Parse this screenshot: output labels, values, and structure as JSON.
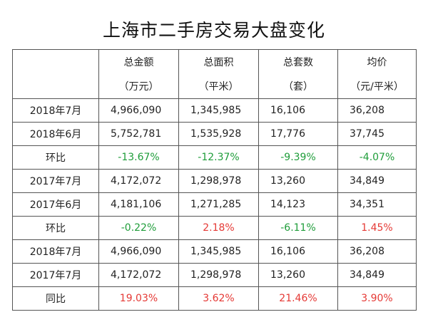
{
  "title": "上海市二手房交易大盘变化",
  "columns": [
    {
      "name": "总金额",
      "unit": "（万元）"
    },
    {
      "name": "总面积",
      "unit": "（平米）"
    },
    {
      "name": "总套数",
      "unit": "（套）"
    },
    {
      "name": "均价",
      "unit": "（元/平米）"
    }
  ],
  "rows": [
    {
      "label": "2018年7月",
      "values": [
        "4,966,090",
        "1,345,985",
        "16,106",
        "36,208"
      ],
      "kind": [
        "plain",
        "plain",
        "plain",
        "plain"
      ]
    },
    {
      "label": "2018年6月",
      "values": [
        "5,752,781",
        "1,535,928",
        "17,776",
        "37,745"
      ],
      "kind": [
        "plain",
        "plain",
        "plain",
        "plain"
      ]
    },
    {
      "label": "环比",
      "values": [
        "-13.67%",
        "-12.37%",
        "-9.39%",
        "-4.07%"
      ],
      "kind": [
        "neg",
        "neg",
        "neg",
        "neg"
      ]
    },
    {
      "label": "2017年7月",
      "values": [
        "4,172,072",
        "1,298,978",
        "13,260",
        "34,849"
      ],
      "kind": [
        "plain",
        "plain",
        "plain",
        "plain"
      ]
    },
    {
      "label": "2017年6月",
      "values": [
        "4,181,106",
        "1,271,285",
        "14,123",
        "34,351"
      ],
      "kind": [
        "plain",
        "plain",
        "plain",
        "plain"
      ]
    },
    {
      "label": "环比",
      "values": [
        "-0.22%",
        "2.18%",
        "-6.11%",
        "1.45%"
      ],
      "kind": [
        "neg",
        "pos",
        "neg",
        "pos"
      ]
    },
    {
      "label": "2018年7月",
      "values": [
        "4,966,090",
        "1,345,985",
        "16,106",
        "36,208"
      ],
      "kind": [
        "plain",
        "plain",
        "plain",
        "plain"
      ]
    },
    {
      "label": "2017年7月",
      "values": [
        "4,172,072",
        "1,298,978",
        "13,260",
        "34,849"
      ],
      "kind": [
        "plain",
        "plain",
        "plain",
        "plain"
      ]
    },
    {
      "label": "同比",
      "values": [
        "19.03%",
        "3.62%",
        "21.46%",
        "3.90%"
      ],
      "kind": [
        "pos",
        "pos",
        "pos",
        "pos"
      ]
    }
  ],
  "colors": {
    "decrease": "#1f9d3a",
    "increase": "#e53935",
    "border": "#555555",
    "text": "#222222"
  }
}
